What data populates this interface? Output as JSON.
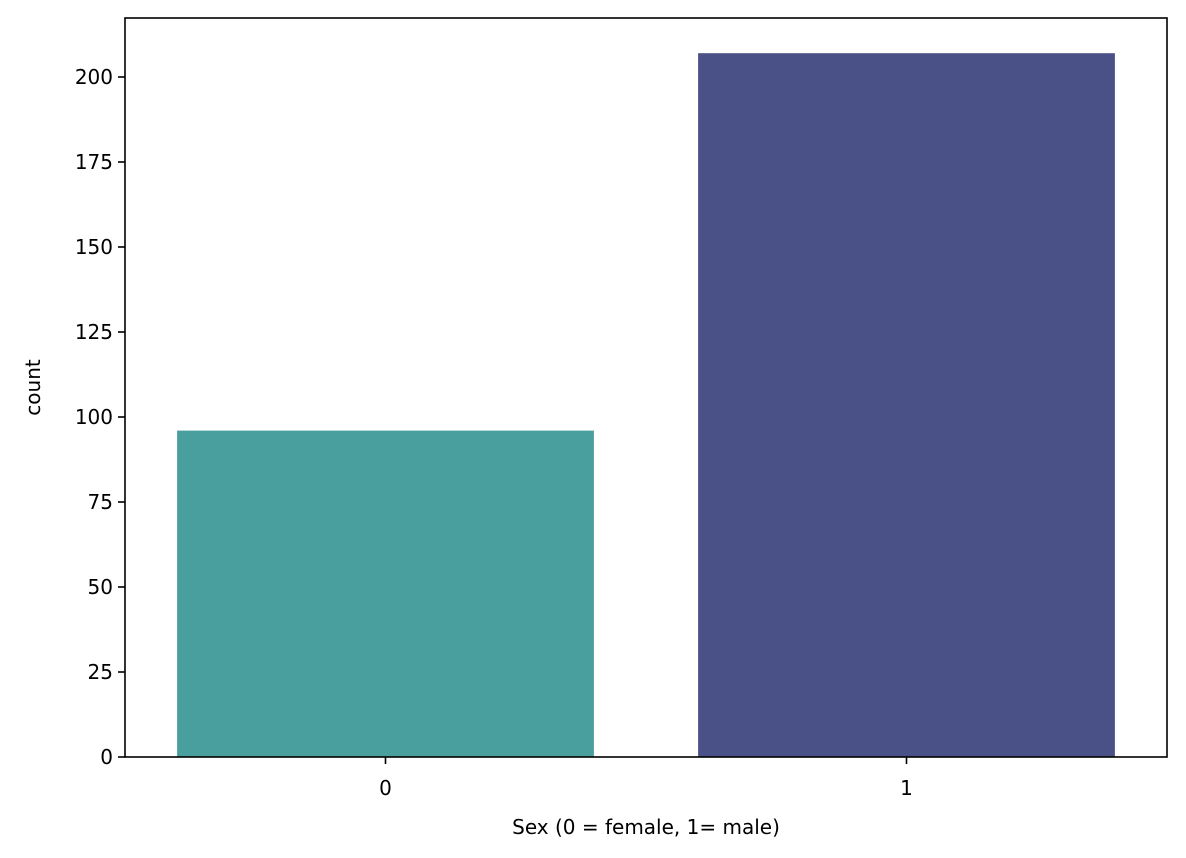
{
  "chart_data": {
    "type": "bar",
    "categories": [
      "0",
      "1"
    ],
    "values": [
      96,
      207
    ],
    "colors": [
      "#499e9e",
      "#4a5186"
    ],
    "title": "",
    "xlabel": "Sex (0 = female, 1= male)",
    "ylabel": "count",
    "ylim": [
      0,
      217.35
    ],
    "yticks": [
      0,
      25,
      50,
      75,
      100,
      125,
      150,
      175,
      200
    ],
    "ytick_labels": [
      "0",
      "25",
      "50",
      "75",
      "100",
      "125",
      "150",
      "175",
      "200"
    ],
    "grid": false,
    "legend": "none"
  }
}
